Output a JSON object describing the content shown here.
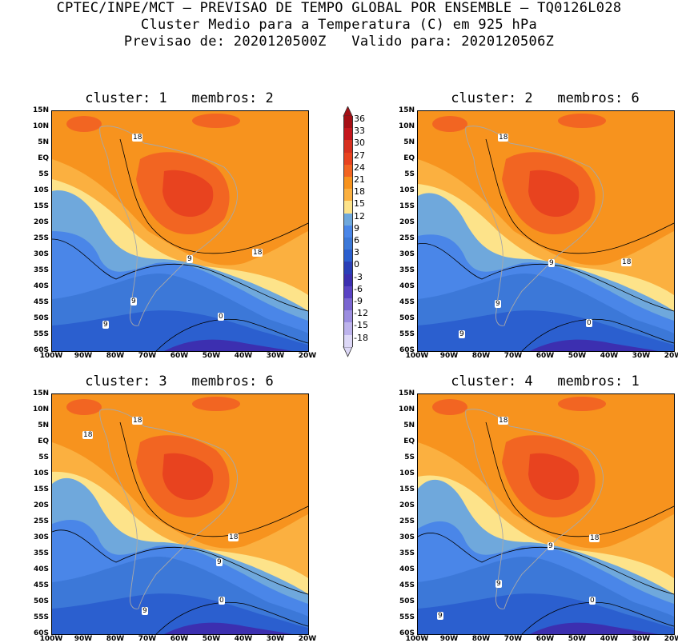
{
  "header": {
    "line1": "CPTEC/INPE/MCT – PREVISAO DE TEMPO GLOBAL POR ENSEMBLE – TQ0126L028",
    "line2": "Cluster Medio para a Temperatura (C) em 925 hPa",
    "line3": "Previsao de: 2020120500Z   Valido para: 2020120506Z"
  },
  "panels": [
    {
      "title": "cluster: 1   membros: 2",
      "labels": [
        "18",
        "18",
        "9",
        "9",
        "0",
        "9"
      ]
    },
    {
      "title": "cluster: 2   membros: 6",
      "labels": [
        "18",
        "18",
        "9",
        "9",
        "0",
        "9"
      ]
    },
    {
      "title": "cluster: 3   membros: 6",
      "labels": [
        "18",
        "18",
        "18",
        "9",
        "0",
        "9"
      ]
    },
    {
      "title": "cluster: 4   membros: 1",
      "labels": [
        "18",
        "18",
        "9",
        "9",
        "0",
        "9"
      ]
    }
  ],
  "axes": {
    "lat_ticks": [
      "15N",
      "10N",
      "5N",
      "EQ",
      "5S",
      "10S",
      "15S",
      "20S",
      "25S",
      "30S",
      "35S",
      "40S",
      "45S",
      "50S",
      "55S",
      "60S"
    ],
    "lon_ticks": [
      "100W",
      "90W",
      "80W",
      "70W",
      "60W",
      "50W",
      "40W",
      "30W",
      "20W"
    ]
  },
  "colorbar": {
    "levels": [
      "36",
      "33",
      "30",
      "27",
      "24",
      "21",
      "18",
      "15",
      "12",
      "9",
      "6",
      "3",
      "0",
      "-3",
      "-6",
      "-9",
      "-12",
      "-15",
      "-18"
    ],
    "colors": [
      "#a50f15",
      "#c4161c",
      "#d7301f",
      "#e8431f",
      "#f26522",
      "#f7931e",
      "#fbb040",
      "#fde38a",
      "#6fa8dc",
      "#4a86e8",
      "#3c78d8",
      "#2b5fcf",
      "#2a3fb7",
      "#3c2fb0",
      "#5a43c4",
      "#7a66d1",
      "#9c8ee0",
      "#bdb3ec",
      "#ddd8f7"
    ]
  }
}
